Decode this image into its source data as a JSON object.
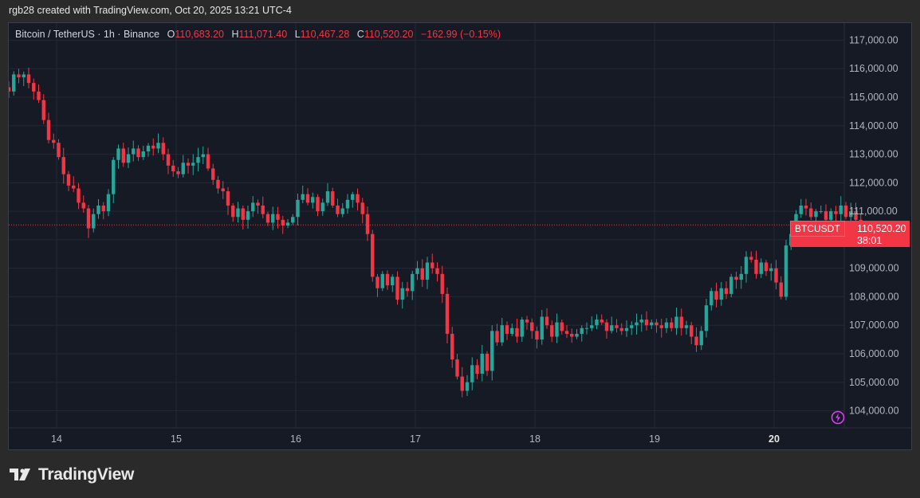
{
  "caption": "rgb28 created with TradingView.com, Oct 20, 2025 13:21 UTC-4",
  "legend": {
    "symbol": "Bitcoin / TetherUS · 1h · Binance",
    "open_label": "O",
    "open": "110,683.20",
    "high_label": "H",
    "high": "111,071.40",
    "low_label": "L",
    "low": "110,467.28",
    "close_label": "C",
    "close": "110,520.20",
    "change": "−162.99 (−0.15%)"
  },
  "price_tag": {
    "symbol": "BTCUSDT",
    "price": "110,520.20",
    "countdown": "38:01"
  },
  "brand": {
    "name": "TradingView"
  },
  "colors": {
    "up": "#26a69a",
    "down": "#f23645",
    "background": "#161a25",
    "grid": "#232836",
    "text": "#b2b5be"
  },
  "chart_data": {
    "type": "candlestick",
    "x_tick_labels": [
      "14",
      "15",
      "16",
      "17",
      "18",
      "19",
      "20"
    ],
    "x_tick_days": [
      14,
      15,
      16,
      17,
      18,
      19,
      20
    ],
    "y_tick_labels": [
      "117,000.00",
      "116,000.00",
      "115,000.00",
      "114,000.00",
      "113,000.00",
      "112,000.00",
      "111,000.00",
      "110,000.00",
      "109,000.00",
      "108,000.00",
      "107,000.00",
      "106,000.00",
      "105,000.00",
      "104,000.00"
    ],
    "y_ticks": [
      117000,
      116000,
      115000,
      114000,
      113000,
      112000,
      111000,
      110000,
      109000,
      108000,
      107000,
      106000,
      105000,
      104000
    ],
    "ylim": [
      103400,
      117600
    ],
    "x_start_day": 13.6,
    "last_price": 110520.2,
    "closes": [
      115200,
      115800,
      115700,
      115800,
      115500,
      115200,
      114900,
      114200,
      113500,
      113400,
      112900,
      112300,
      111900,
      111800,
      111300,
      111100,
      110400,
      110900,
      111200,
      111000,
      111600,
      112800,
      113200,
      112700,
      113000,
      113200,
      112900,
      113100,
      113300,
      113200,
      113400,
      113000,
      112600,
      112400,
      112300,
      112700,
      112600,
      112700,
      112900,
      113000,
      112500,
      112100,
      111800,
      111700,
      111200,
      110800,
      111100,
      110700,
      111000,
      111300,
      111200,
      110900,
      110600,
      110900,
      110700,
      110500,
      110600,
      110800,
      111400,
      111600,
      111300,
      111500,
      111000,
      111300,
      111700,
      111200,
      110900,
      111100,
      111400,
      111600,
      111300,
      110900,
      110200,
      108700,
      108300,
      108800,
      108400,
      108700,
      107900,
      108300,
      108200,
      108800,
      109000,
      108600,
      109200,
      109000,
      108800,
      108100,
      106700,
      105800,
      105200,
      104700,
      105000,
      105600,
      105300,
      106000,
      105400,
      106800,
      106400,
      107000,
      106700,
      106900,
      106600,
      107200,
      107100,
      106800,
      106500,
      107300,
      107000,
      106600,
      107100,
      106800,
      106700,
      106600,
      106700,
      106900,
      106900,
      107000,
      107200,
      107100,
      106800,
      107000,
      106900,
      106800,
      106900,
      107000,
      107100,
      107200,
      107000,
      107100,
      107000,
      106900,
      107100,
      106900,
      107300,
      106900,
      107000,
      106600,
      106300,
      106800,
      107700,
      108200,
      107900,
      108300,
      108100,
      108700,
      108600,
      108800,
      109400,
      109300,
      108800,
      109200,
      108900,
      109000,
      108500,
      108000,
      109800,
      110200,
      110900,
      111200,
      111100,
      110800,
      111000,
      111000,
      110700,
      111000,
      110900,
      111200,
      110800,
      111000,
      110700,
      110500
    ],
    "series_note": ""
  }
}
